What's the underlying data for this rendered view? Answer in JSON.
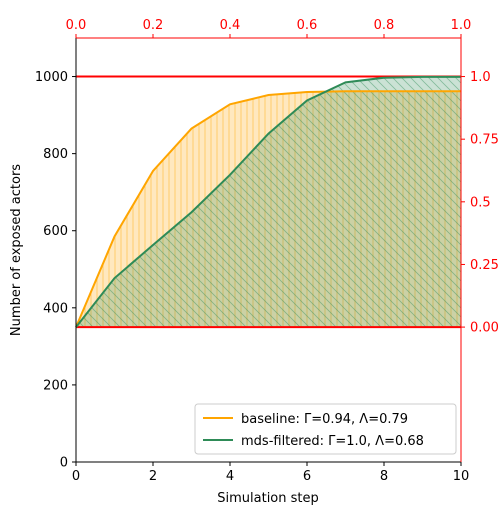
{
  "chart_data": {
    "type": "area",
    "xlabel": "Simulation step",
    "ylabel": "Number of exposed actors",
    "xlim": [
      0,
      10
    ],
    "ylim": [
      0,
      1100
    ],
    "x_ticks": [
      0,
      2,
      4,
      6,
      8,
      10
    ],
    "x_tick_labels": [
      "0",
      "2",
      "4",
      "6",
      "8",
      "10"
    ],
    "y_ticks": [
      0,
      200,
      400,
      600,
      800,
      1000
    ],
    "y_tick_labels": [
      "0",
      "200",
      "400",
      "600",
      "800",
      "1000"
    ],
    "top_axis": {
      "color": "#ff0000",
      "range": [
        0,
        1
      ],
      "ticks": [
        0.0,
        0.2,
        0.4,
        0.6,
        0.8,
        1.0
      ],
      "tick_labels": [
        "0.0",
        "0.2",
        "0.4",
        "0.6",
        "0.8",
        "1.0"
      ]
    },
    "right_axis": {
      "color": "#ff0000",
      "ticks_in_left_units": [
        350,
        512.5,
        675,
        837.5,
        1000
      ],
      "tick_labels": [
        "0.00",
        "0.25",
        "0.5",
        "0.75",
        "1.0"
      ]
    },
    "reference_lines": [
      {
        "y": 1000,
        "color": "#ff0000"
      },
      {
        "y": 350,
        "color": "#ff0000"
      }
    ],
    "fill_baseline": 350,
    "x": [
      0,
      1,
      2,
      3,
      4,
      5,
      6,
      7,
      8,
      9,
      10
    ],
    "series": [
      {
        "name": "baseline: Γ=0.94, Λ=0.79",
        "color": "#ffa500",
        "hatch": "vertical",
        "values": [
          350,
          585,
          755,
          865,
          928,
          952,
          960,
          962,
          962,
          962,
          962
        ]
      },
      {
        "name": "mds-filtered: Γ=1.0, Λ=0.68",
        "color": "#2e8b57",
        "hatch": "diagonal",
        "values": [
          350,
          477,
          563,
          648,
          745,
          852,
          938,
          985,
          997,
          999,
          999
        ]
      }
    ],
    "legend_position": "lower-right",
    "grid": false
  }
}
